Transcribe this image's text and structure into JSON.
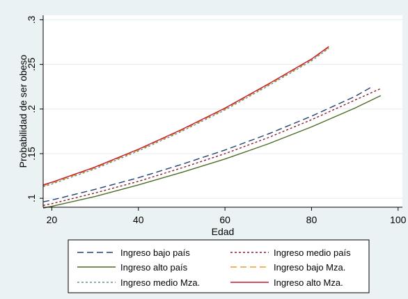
{
  "chart_data": {
    "type": "line",
    "title": "",
    "xlabel": "Edad",
    "ylabel": "Probabilidad de ser obeso",
    "xlim": [
      18,
      101
    ],
    "ylim": [
      0.09,
      0.305
    ],
    "x_ticks": [
      20,
      40,
      60,
      80,
      100
    ],
    "x_tick_labels": [
      "20",
      "40",
      "60",
      "80",
      "100"
    ],
    "y_ticks": [
      0.1,
      0.15,
      0.2,
      0.25,
      0.3
    ],
    "y_tick_labels": [
      ".1",
      ".15",
      ".2",
      ".25",
      ".3"
    ],
    "grid": "horizontal",
    "legend_position": "bottom",
    "plot_background": "#ffffff",
    "page_background": "#eaf2f3",
    "series": [
      {
        "name": "Ingreso bajo país",
        "color": "#1f3f6e",
        "dash": "long-dash",
        "x": [
          18,
          20,
          30,
          40,
          50,
          60,
          70,
          80,
          90,
          94
        ],
        "y": [
          0.096,
          0.098,
          0.11,
          0.123,
          0.138,
          0.154,
          0.172,
          0.192,
          0.214,
          0.225
        ]
      },
      {
        "name": "Ingreso medio país",
        "color": "#8b1a2a",
        "dash": "short-dash",
        "x": [
          18,
          20,
          30,
          40,
          50,
          60,
          70,
          80,
          90,
          96
        ],
        "y": [
          0.092,
          0.094,
          0.106,
          0.119,
          0.134,
          0.15,
          0.168,
          0.188,
          0.21,
          0.223
        ]
      },
      {
        "name": "Ingreso alto país",
        "color": "#4a6b24",
        "dash": "solid",
        "x": [
          18,
          20,
          30,
          40,
          50,
          60,
          70,
          80,
          90,
          96
        ],
        "y": [
          0.089,
          0.091,
          0.102,
          0.115,
          0.129,
          0.144,
          0.161,
          0.18,
          0.201,
          0.215
        ]
      },
      {
        "name": "Ingreso bajo Mza.",
        "color": "#e8a020",
        "dash": "long-dash",
        "x": [
          18,
          20,
          30,
          40,
          50,
          60,
          70,
          80,
          84
        ],
        "y": [
          0.114,
          0.117,
          0.134,
          0.154,
          0.176,
          0.2,
          0.227,
          0.255,
          0.269
        ]
      },
      {
        "name": "Ingreso medio Mza.",
        "color": "#5f8f96",
        "dash": "short-dash",
        "x": [
          18,
          20,
          30,
          40,
          50,
          60,
          70,
          80,
          84
        ],
        "y": [
          0.113,
          0.116,
          0.133,
          0.153,
          0.175,
          0.199,
          0.226,
          0.254,
          0.268
        ]
      },
      {
        "name": "Ingreso alto Mza.",
        "color": "#c0182e",
        "dash": "solid",
        "x": [
          18,
          20,
          30,
          40,
          50,
          60,
          70,
          80,
          84
        ],
        "y": [
          0.115,
          0.118,
          0.135,
          0.155,
          0.177,
          0.201,
          0.228,
          0.256,
          0.27
        ]
      }
    ]
  }
}
